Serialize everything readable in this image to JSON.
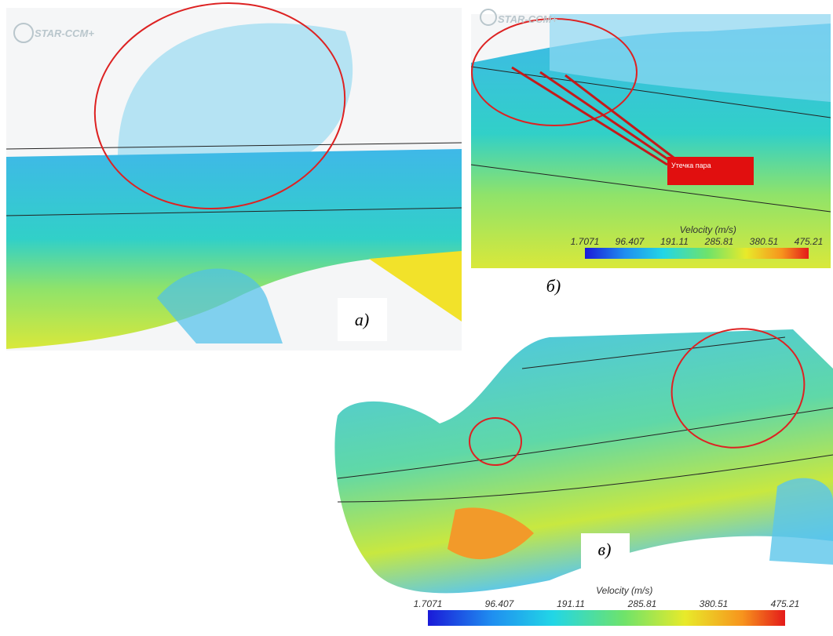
{
  "panels": [
    {
      "logo": "STAR-CCM+",
      "label": "а)"
    },
    {
      "logo": "STAR-CCM+",
      "label": "б)",
      "annotation": "Утечка пара",
      "colorbar": {
        "title": "Velocity (m/s)",
        "ticks": [
          "1.7071",
          "96.407",
          "191.11",
          "285.81",
          "380.51",
          "475.21"
        ]
      }
    },
    {
      "label": "в)",
      "colorbar": {
        "title": "Velocity (m/s)",
        "ticks": [
          "1.7071",
          "96.407",
          "191.11",
          "285.81",
          "380.51",
          "475.21"
        ]
      }
    }
  ]
}
